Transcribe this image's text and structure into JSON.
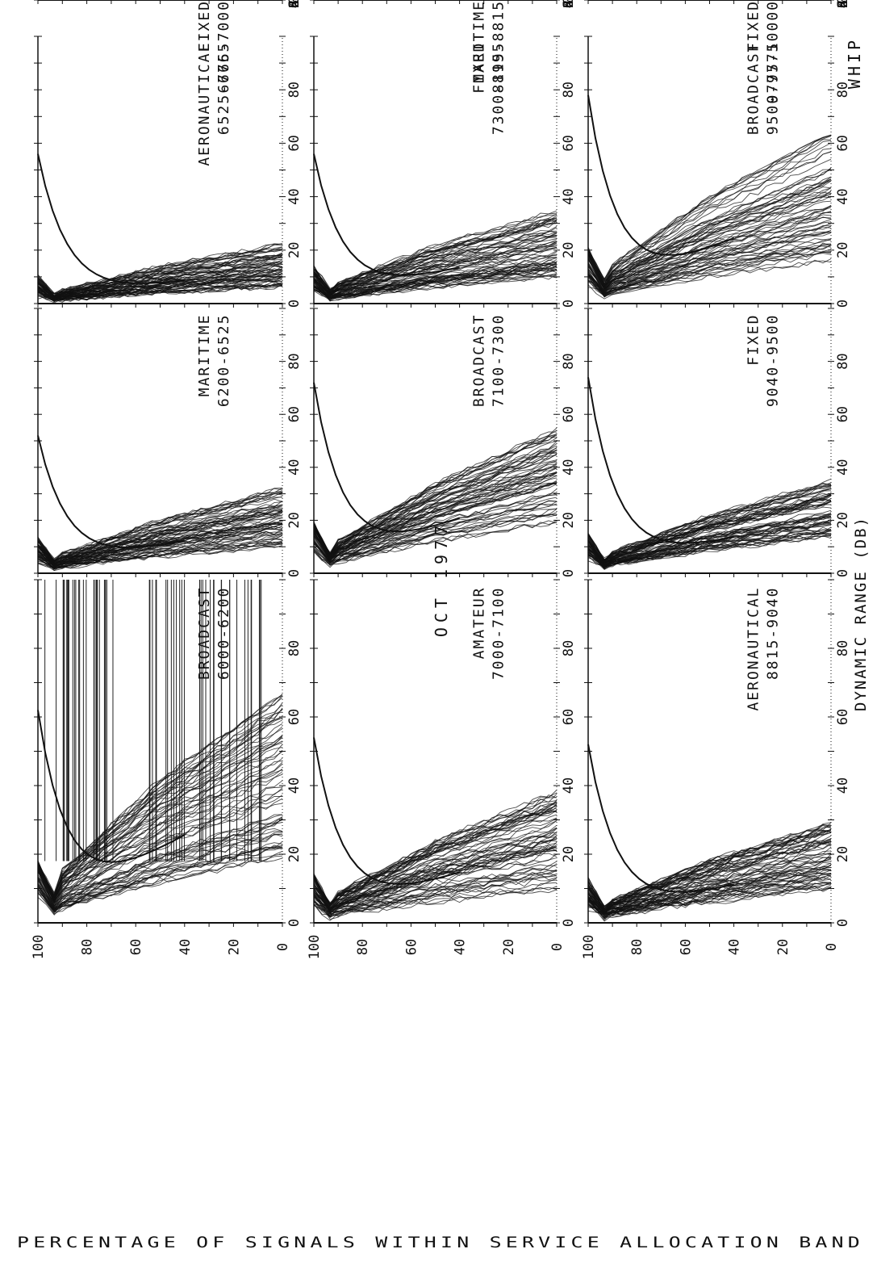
{
  "header": {
    "date": "OCT 1977",
    "antenna": "WHIP"
  },
  "axis_labels": {
    "x": "DYNAMIC RANGE (DB)",
    "y": "PERCENTAGE OF SIGNALS WITHIN SERVICE ALLOCATION BAND"
  },
  "chart_data": {
    "type": "line",
    "title": "OCT 1977",
    "subtitle": "WHIP",
    "xlabel": "DYNAMIC RANGE (DB)",
    "ylabel": "PERCENTAGE OF SIGNALS WITHIN SERVICE ALLOCATION BAND",
    "xlim": [
      0,
      100
    ],
    "ylim": [
      0,
      100
    ],
    "x_ticks": [
      "0",
      "20",
      "40",
      "60",
      "80"
    ],
    "y_ticks": [
      "0",
      "20",
      "40",
      "60",
      "80",
      "100"
    ],
    "grid": false,
    "panels": [
      {
        "service": "BROADCAST",
        "band": "6000-6200",
        "row": 0,
        "col": 0,
        "x_at_50pct_range": [
          12,
          42
        ],
        "max_range": 62,
        "vertical_hatch": true
      },
      {
        "service": "MARITIME",
        "band": "6200-6525",
        "row": 0,
        "col": 1,
        "x_at_50pct_range": [
          6,
          20
        ],
        "max_range": 52
      },
      {
        "service": "AERONAUTICAL",
        "band": "6525-6765",
        "row": 0,
        "col": 2,
        "x_at_50pct_range": [
          4,
          14
        ],
        "max_range": 56
      },
      {
        "service": "FIXED",
        "band": "6765-7000",
        "row": 0,
        "col": 3,
        "x_at_50pct_range": [
          6,
          18
        ],
        "max_range": 54
      },
      {
        "service": "AMATEUR",
        "band": "7000-7100",
        "row": 1,
        "col": 0,
        "x_at_50pct_range": [
          6,
          24
        ],
        "max_range": 54
      },
      {
        "service": "BROADCAST",
        "band": "7100-7300",
        "row": 1,
        "col": 1,
        "x_at_50pct_range": [
          12,
          34
        ],
        "max_range": 72
      },
      {
        "service": "FIXED",
        "band": "7300-8195",
        "row": 1,
        "col": 2,
        "x_at_50pct_range": [
          6,
          22
        ],
        "max_range": 56
      },
      {
        "service": "MARITIME",
        "band": "8195-8815",
        "row": 1,
        "col": 3,
        "x_at_50pct_range": [
          6,
          24
        ],
        "max_range": 66
      },
      {
        "service": "AERONAUTICAL",
        "band": "8815-9040",
        "row": 2,
        "col": 0,
        "x_at_50pct_range": [
          6,
          18
        ],
        "max_range": 52
      },
      {
        "service": "FIXED",
        "band": "9040-9500",
        "row": 2,
        "col": 1,
        "x_at_50pct_range": [
          8,
          22
        ],
        "max_range": 74
      },
      {
        "service": "BROADCAST",
        "band": "9500-9775",
        "row": 2,
        "col": 2,
        "x_at_50pct_range": [
          10,
          40
        ],
        "max_range": 78
      },
      {
        "service": "FIXED",
        "band": "9775-10000",
        "row": 2,
        "col": 3,
        "x_at_50pct_range": [
          8,
          26
        ],
        "max_range": 66
      }
    ]
  }
}
